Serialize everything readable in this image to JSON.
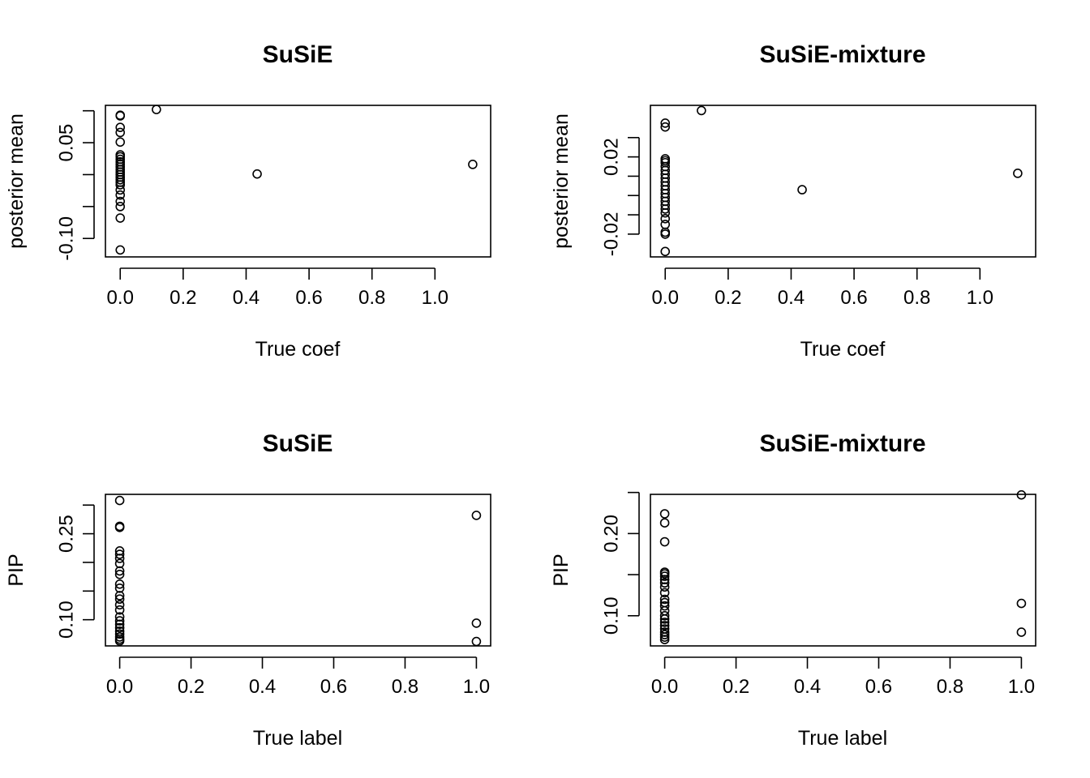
{
  "chart_data": [
    {
      "type": "scatter",
      "title": "SuSiE",
      "xlabel": "True coef",
      "ylabel": "posterior mean",
      "xlim": [
        -0.047,
        1.177
      ],
      "ylim": [
        -0.1289,
        0.1085
      ],
      "xticks": [
        0.0,
        0.2,
        0.4,
        0.6,
        0.8,
        1.0
      ],
      "xtick_labels": [
        "0.0",
        "0.2",
        "0.4",
        "0.6",
        "0.8",
        "1.0"
      ],
      "yticks": [
        -0.1,
        -0.05,
        0.0,
        0.05,
        0.1
      ],
      "ytick_labels": [
        "-0.10",
        "",
        "",
        "0.05",
        ""
      ],
      "points": [
        {
          "x": 0,
          "y": 0.093
        },
        {
          "x": 0,
          "y": 0.092
        },
        {
          "x": 0,
          "y": 0.074
        },
        {
          "x": 0,
          "y": 0.066
        },
        {
          "x": 0,
          "y": 0.051
        },
        {
          "x": 0,
          "y": 0.031
        },
        {
          "x": 0,
          "y": 0.028
        },
        {
          "x": 0,
          "y": 0.024
        },
        {
          "x": 0,
          "y": 0.02
        },
        {
          "x": 0,
          "y": 0.016
        },
        {
          "x": 0,
          "y": 0.012
        },
        {
          "x": 0,
          "y": 0.008
        },
        {
          "x": 0,
          "y": 0.004
        },
        {
          "x": 0,
          "y": 0.0
        },
        {
          "x": 0,
          "y": -0.004
        },
        {
          "x": 0,
          "y": -0.008
        },
        {
          "x": 0,
          "y": -0.012
        },
        {
          "x": 0,
          "y": -0.016
        },
        {
          "x": 0,
          "y": -0.024
        },
        {
          "x": 0,
          "y": -0.032
        },
        {
          "x": 0,
          "y": -0.042
        },
        {
          "x": 0,
          "y": -0.05
        },
        {
          "x": 0,
          "y": -0.068
        },
        {
          "x": 0,
          "y": -0.118
        },
        {
          "x": 0.115,
          "y": 0.102
        },
        {
          "x": 0.435,
          "y": 0.001
        },
        {
          "x": 1.12,
          "y": 0.016
        }
      ]
    },
    {
      "type": "scatter",
      "title": "SuSiE-mixture",
      "xlabel": "True coef",
      "ylabel": "posterior mean",
      "xlim": [
        -0.047,
        1.177
      ],
      "ylim": [
        -0.0318,
        0.0467
      ],
      "xticks": [
        0.0,
        0.2,
        0.4,
        0.6,
        0.8,
        1.0
      ],
      "xtick_labels": [
        "0.0",
        "0.2",
        "0.4",
        "0.6",
        "0.8",
        "1.0"
      ],
      "yticks": [
        -0.02,
        -0.01,
        0.0,
        0.01,
        0.02,
        0.03
      ],
      "ytick_labels": [
        "-0.02",
        "",
        "",
        "",
        "0.02",
        ""
      ],
      "points": [
        {
          "x": 0,
          "y": 0.0375
        },
        {
          "x": 0,
          "y": 0.0355
        },
        {
          "x": 0,
          "y": 0.019
        },
        {
          "x": 0,
          "y": 0.018
        },
        {
          "x": 0,
          "y": 0.017
        },
        {
          "x": 0,
          "y": 0.015
        },
        {
          "x": 0,
          "y": 0.013
        },
        {
          "x": 0,
          "y": 0.011
        },
        {
          "x": 0,
          "y": 0.009
        },
        {
          "x": 0,
          "y": 0.007
        },
        {
          "x": 0,
          "y": 0.005
        },
        {
          "x": 0,
          "y": 0.003
        },
        {
          "x": 0,
          "y": 0.001
        },
        {
          "x": 0,
          "y": -0.001
        },
        {
          "x": 0,
          "y": -0.003
        },
        {
          "x": 0,
          "y": -0.005
        },
        {
          "x": 0,
          "y": -0.007
        },
        {
          "x": 0,
          "y": -0.009
        },
        {
          "x": 0,
          "y": -0.012
        },
        {
          "x": 0,
          "y": -0.015
        },
        {
          "x": 0,
          "y": -0.019
        },
        {
          "x": 0,
          "y": -0.02
        },
        {
          "x": 0,
          "y": -0.029
        },
        {
          "x": 0.115,
          "y": 0.044
        },
        {
          "x": 0.435,
          "y": 0.003
        },
        {
          "x": 1.12,
          "y": 0.0115
        }
      ]
    },
    {
      "type": "scatter",
      "title": "SuSiE",
      "xlabel": "True label",
      "ylabel": "PIP",
      "xlim": [
        -0.04,
        1.04
      ],
      "ylim": [
        0.0543,
        0.3187
      ],
      "xticks": [
        0.0,
        0.2,
        0.4,
        0.6,
        0.8,
        1.0
      ],
      "xtick_labels": [
        "0.0",
        "0.2",
        "0.4",
        "0.6",
        "0.8",
        "1.0"
      ],
      "yticks": [
        0.1,
        0.15,
        0.2,
        0.25,
        0.3
      ],
      "ytick_labels": [
        "0.10",
        "",
        "",
        "0.25",
        ""
      ],
      "points": [
        {
          "x": 0,
          "y": 0.308
        },
        {
          "x": 0,
          "y": 0.263
        },
        {
          "x": 0,
          "y": 0.261
        },
        {
          "x": 0,
          "y": 0.22
        },
        {
          "x": 0,
          "y": 0.214
        },
        {
          "x": 0,
          "y": 0.207
        },
        {
          "x": 0,
          "y": 0.198
        },
        {
          "x": 0,
          "y": 0.185
        },
        {
          "x": 0,
          "y": 0.179
        },
        {
          "x": 0,
          "y": 0.162
        },
        {
          "x": 0,
          "y": 0.155
        },
        {
          "x": 0,
          "y": 0.142
        },
        {
          "x": 0,
          "y": 0.136
        },
        {
          "x": 0,
          "y": 0.126
        },
        {
          "x": 0,
          "y": 0.117
        },
        {
          "x": 0,
          "y": 0.105
        },
        {
          "x": 0,
          "y": 0.098
        },
        {
          "x": 0,
          "y": 0.092
        },
        {
          "x": 0,
          "y": 0.086
        },
        {
          "x": 0,
          "y": 0.08
        },
        {
          "x": 0,
          "y": 0.075
        },
        {
          "x": 0,
          "y": 0.07
        },
        {
          "x": 0,
          "y": 0.066
        },
        {
          "x": 0,
          "y": 0.063
        },
        {
          "x": 1,
          "y": 0.282
        },
        {
          "x": 1,
          "y": 0.094
        },
        {
          "x": 1,
          "y": 0.062
        }
      ]
    },
    {
      "type": "scatter",
      "title": "SuSiE-mixture",
      "xlabel": "True label",
      "ylabel": "PIP",
      "xlim": [
        -0.04,
        1.04
      ],
      "ylim": [
        0.0633,
        0.2477
      ],
      "xticks": [
        0.0,
        0.2,
        0.4,
        0.6,
        0.8,
        1.0
      ],
      "xtick_labels": [
        "0.0",
        "0.2",
        "0.4",
        "0.6",
        "0.8",
        "1.0"
      ],
      "yticks": [
        0.1,
        0.15,
        0.2,
        0.25
      ],
      "ytick_labels": [
        "0.10",
        "",
        "0.20",
        ""
      ],
      "points": [
        {
          "x": 0,
          "y": 0.224
        },
        {
          "x": 0,
          "y": 0.213
        },
        {
          "x": 0,
          "y": 0.19
        },
        {
          "x": 0,
          "y": 0.153
        },
        {
          "x": 0,
          "y": 0.151
        },
        {
          "x": 0,
          "y": 0.148
        },
        {
          "x": 0,
          "y": 0.144
        },
        {
          "x": 0,
          "y": 0.14
        },
        {
          "x": 0,
          "y": 0.135
        },
        {
          "x": 0,
          "y": 0.128
        },
        {
          "x": 0,
          "y": 0.12
        },
        {
          "x": 0,
          "y": 0.116
        },
        {
          "x": 0,
          "y": 0.112
        },
        {
          "x": 0,
          "y": 0.106
        },
        {
          "x": 0,
          "y": 0.1
        },
        {
          "x": 0,
          "y": 0.096
        },
        {
          "x": 0,
          "y": 0.092
        },
        {
          "x": 0,
          "y": 0.088
        },
        {
          "x": 0,
          "y": 0.084
        },
        {
          "x": 0,
          "y": 0.08
        },
        {
          "x": 0,
          "y": 0.077
        },
        {
          "x": 0,
          "y": 0.074
        },
        {
          "x": 0,
          "y": 0.071
        },
        {
          "x": 1,
          "y": 0.247
        },
        {
          "x": 1,
          "y": 0.115
        },
        {
          "x": 1,
          "y": 0.08
        }
      ]
    }
  ]
}
